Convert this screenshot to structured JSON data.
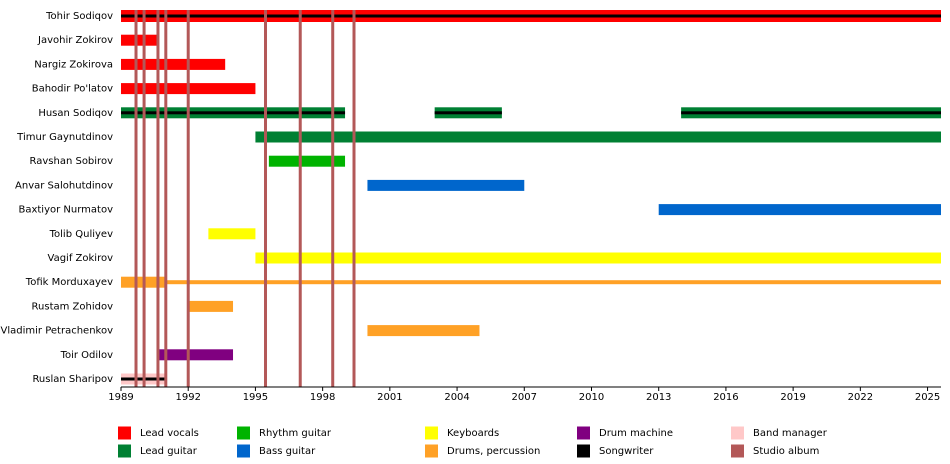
{
  "chart_data": {
    "type": "timeline",
    "xlim": [
      1989,
      2025.6
    ],
    "xticks": [
      1989,
      1992,
      1995,
      1998,
      2001,
      2004,
      2007,
      2010,
      2013,
      2016,
      2019,
      2022,
      2025
    ],
    "roles": [
      {
        "name": "Lead vocals",
        "color": "#ff0000"
      },
      {
        "name": "Lead guitar",
        "color": "#008033"
      },
      {
        "name": "Rhythm guitar",
        "color": "#00b300"
      },
      {
        "name": "Bass guitar",
        "color": "#0066cc"
      },
      {
        "name": "Keyboards",
        "color": "#ffff00"
      },
      {
        "name": "Drums, percussion",
        "color": "#ffa126"
      },
      {
        "name": "Drum machine",
        "color": "#800080"
      },
      {
        "name": "Songwriter",
        "color": "#000000"
      },
      {
        "name": "Band manager",
        "color": "#ffc8c8"
      },
      {
        "name": "Studio album",
        "color": "#b35858"
      }
    ],
    "members": [
      {
        "name": "Tohir Sodiqov",
        "periods": [
          {
            "start": 1989,
            "end": 2025.6,
            "roles": [
              0,
              7
            ]
          }
        ]
      },
      {
        "name": "Javohir Zokirov",
        "periods": [
          {
            "start": 1989,
            "end": 1990.65,
            "roles": [
              0
            ]
          }
        ]
      },
      {
        "name": "Nargiz Zokirova",
        "periods": [
          {
            "start": 1989,
            "end": 1993.65,
            "roles": [
              0
            ]
          }
        ]
      },
      {
        "name": "Bahodir Po'latov",
        "periods": [
          {
            "start": 1989,
            "end": 1995,
            "roles": [
              0
            ]
          }
        ]
      },
      {
        "name": "Husan Sodiqov",
        "periods": [
          {
            "start": 1989,
            "end": 1999,
            "roles": [
              1,
              7
            ]
          },
          {
            "start": 2003,
            "end": 2006,
            "roles": [
              1,
              7
            ]
          },
          {
            "start": 2014,
            "end": 2025.6,
            "roles": [
              1,
              7
            ]
          }
        ]
      },
      {
        "name": "Timur Gaynutdinov",
        "periods": [
          {
            "start": 1995,
            "end": 2025.6,
            "roles": [
              1
            ]
          }
        ]
      },
      {
        "name": "Ravshan Sobirov",
        "periods": [
          {
            "start": 1995.6,
            "end": 1999,
            "roles": [
              2
            ]
          }
        ]
      },
      {
        "name": "Anvar Salohutdinov",
        "periods": [
          {
            "start": 2000,
            "end": 2007,
            "roles": [
              3
            ]
          }
        ]
      },
      {
        "name": "Baxtiyor Nurmatov",
        "periods": [
          {
            "start": 2013,
            "end": 2025.6,
            "roles": [
              3
            ]
          }
        ]
      },
      {
        "name": "Tolib Quliyev",
        "periods": [
          {
            "start": 1992.9,
            "end": 1995,
            "roles": [
              4
            ]
          }
        ]
      },
      {
        "name": "Vagif Zokirov",
        "periods": [
          {
            "start": 1995,
            "end": 2025.6,
            "roles": [
              4
            ]
          }
        ]
      },
      {
        "name": "Tofik Morduxayev",
        "periods": [
          {
            "start": 1989,
            "end": 1991,
            "roles": [
              5
            ]
          },
          {
            "start": 1991,
            "end": 2025.6,
            "roles": [
              5
            ],
            "thin": true
          }
        ]
      },
      {
        "name": "Rustam Zohidov",
        "periods": [
          {
            "start": 1992,
            "end": 1994,
            "roles": [
              5
            ]
          }
        ]
      },
      {
        "name": "Vladimir Petrachenkov",
        "periods": [
          {
            "start": 2000,
            "end": 2005,
            "roles": [
              5
            ]
          }
        ]
      },
      {
        "name": "Toir Odilov",
        "periods": [
          {
            "start": 1990.6,
            "end": 1994,
            "roles": [
              6
            ]
          }
        ]
      },
      {
        "name": "Ruslan Sharipov",
        "periods": [
          {
            "start": 1989,
            "end": 1991,
            "roles": [
              8,
              7
            ]
          }
        ]
      }
    ],
    "albums": [
      1989.67,
      1990.03,
      1990.65,
      1991.0,
      1992.0,
      1995.45,
      1997.0,
      1998.45,
      1999.4
    ],
    "album_role": 9
  }
}
